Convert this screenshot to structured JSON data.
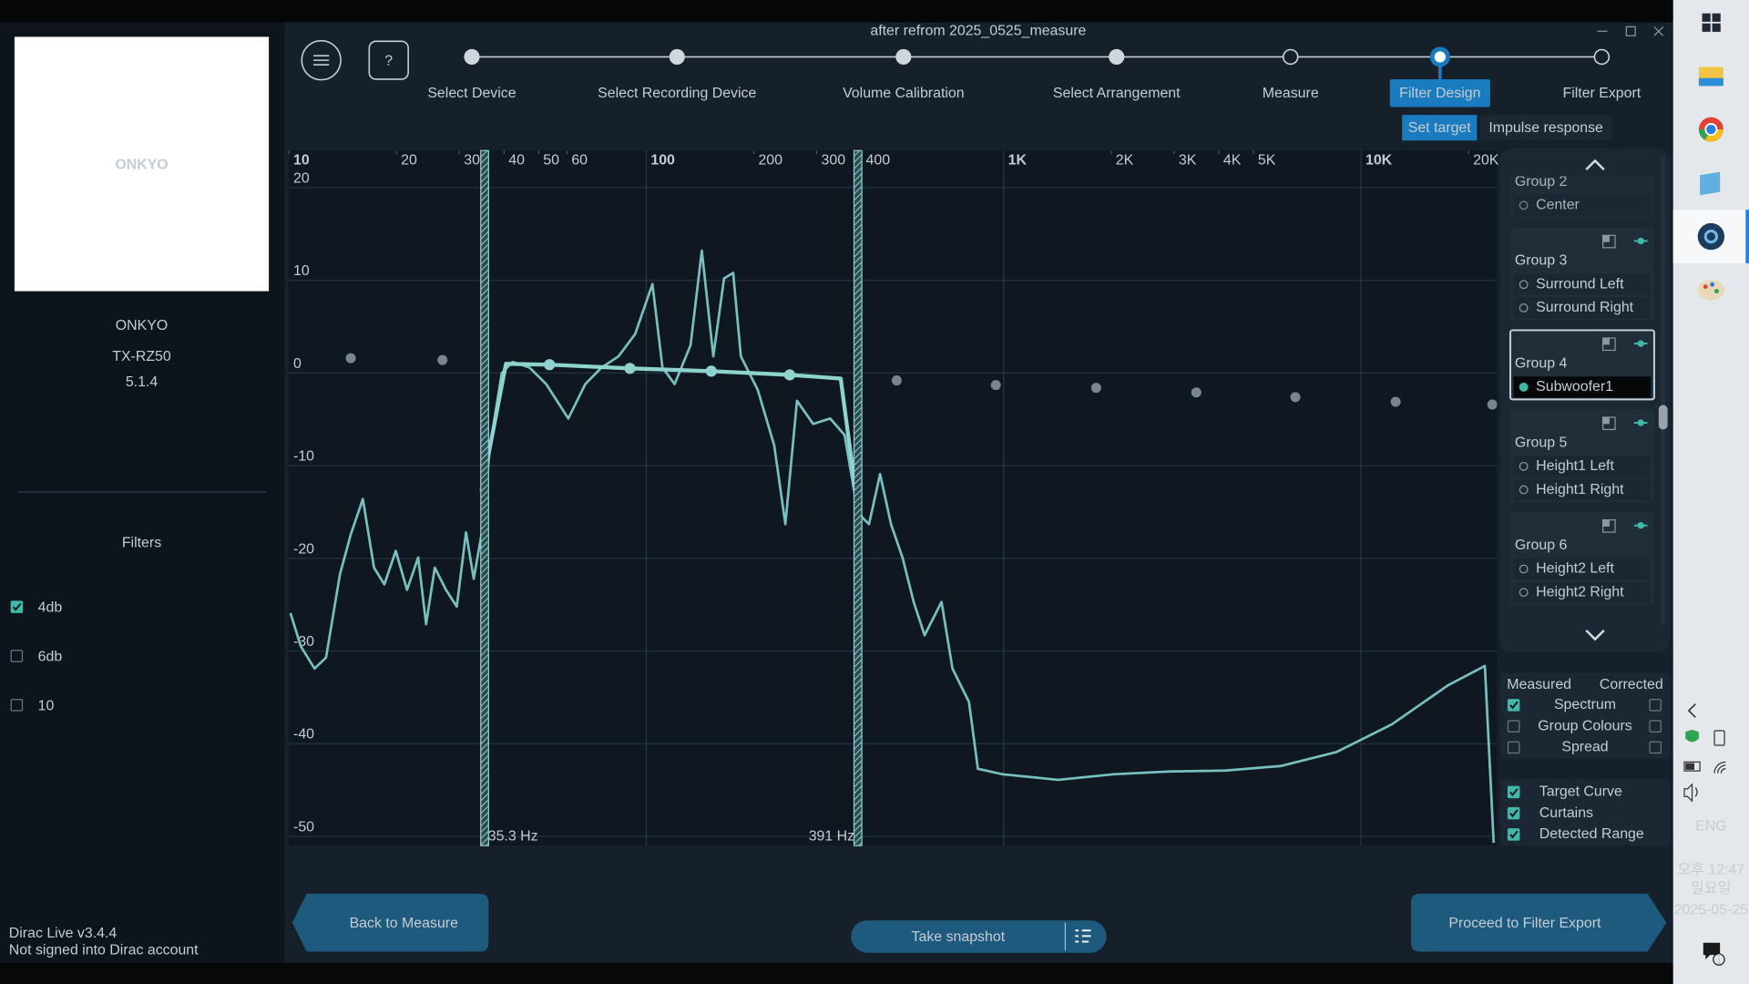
{
  "window": {
    "title": "after refrom 2025_0525_measure"
  },
  "sidebar": {
    "logo": "ONKYO",
    "brand": "ONKYO",
    "model": "TX-RZ50",
    "configuration": "5.1.4",
    "filters_title": "Filters",
    "filters": [
      {
        "label": "4db",
        "checked": true
      },
      {
        "label": "6db",
        "checked": false
      },
      {
        "label": "10",
        "checked": false
      }
    ],
    "version": "Dirac Live v3.4.4",
    "account": "Not signed into Dirac account"
  },
  "toolbar": {
    "help": "?"
  },
  "steps": [
    {
      "label": "Select Device",
      "state": "done"
    },
    {
      "label": "Select Recording Device",
      "state": "done"
    },
    {
      "label": "Volume Calibration",
      "state": "done"
    },
    {
      "label": "Select Arrangement",
      "state": "done"
    },
    {
      "label": "Measure",
      "state": "todo"
    },
    {
      "label": "Filter Design",
      "state": "current"
    },
    {
      "label": "Filter Export",
      "state": "todo"
    }
  ],
  "subtabs": [
    {
      "label": "Set target",
      "active": true
    },
    {
      "label": "Impulse response",
      "active": false
    }
  ],
  "chart_data": {
    "type": "line",
    "xscale": "log",
    "xlim": [
      10,
      24000
    ],
    "ylim": [
      -51,
      24
    ],
    "xticks": [
      10,
      20,
      30,
      40,
      50,
      60,
      100,
      200,
      300,
      400,
      {
        "value": 1000,
        "label": "1K"
      },
      {
        "value": 2000,
        "label": "2K"
      },
      {
        "value": 3000,
        "label": "3K"
      },
      {
        "value": 4000,
        "label": "4K"
      },
      {
        "value": 5000,
        "label": "5K"
      },
      {
        "value": 10000,
        "label": "10K"
      },
      {
        "value": 20000,
        "label": "20K"
      }
    ],
    "yticks": [
      20,
      10,
      0,
      -10,
      -20,
      -30,
      -40,
      -50
    ],
    "grid": true,
    "curtains": [
      {
        "value": 35.3,
        "label": "35.3 Hz"
      },
      {
        "value": 391,
        "label": "391 Hz"
      }
    ],
    "series": [
      {
        "type": "line",
        "color": "#78bfc0",
        "x": [
          10.1,
          10.8,
          11.8,
          12.7,
          13.9,
          14.9,
          16.1,
          17.3,
          18.5,
          19.9,
          21.4,
          23.0,
          24.2,
          25.6,
          27.5,
          29.5,
          31.3,
          32.9,
          34.6,
          36.6,
          39.4,
          42.3,
          47.1,
          52.5,
          60.5,
          67.5,
          75.0,
          83.6,
          93.1,
          104,
          111,
          120,
          133,
          143,
          154,
          165,
          175,
          184,
          205,
          228,
          245,
          264,
          293,
          327,
          359,
          391,
          420,
          451,
          484,
          521,
          560,
          601,
          670,
          719,
          800,
          847,
          993,
          1420,
          2030,
          2910,
          4170,
          5970,
          8530,
          12200,
          17500,
          22200,
          23500
        ],
        "values": [
          -25.9,
          -29.5,
          -31.9,
          -30.7,
          -21.7,
          -17.4,
          -13.6,
          -21.0,
          -22.8,
          -19.2,
          -23.4,
          -19.9,
          -27.1,
          -21.0,
          -23.4,
          -25.2,
          -17.2,
          -22.2,
          -17.4,
          -7.8,
          0.0,
          1.2,
          0.6,
          -1.2,
          -4.9,
          -1.2,
          0.6,
          1.8,
          4.2,
          9.6,
          0.6,
          -1.2,
          3.0,
          13.2,
          1.8,
          10.2,
          10.8,
          1.8,
          -1.8,
          -7.8,
          -16.3,
          -3.0,
          -5.5,
          -4.9,
          -6.7,
          -15.1,
          -16.3,
          -10.9,
          -16.3,
          -19.9,
          -24.7,
          -28.3,
          -24.7,
          -31.9,
          -35.5,
          -42.7,
          -43.3,
          -43.9,
          -43.3,
          -43.0,
          -42.9,
          -42.4,
          -40.9,
          -37.9,
          -33.7,
          -31.6,
          -50.7
        ]
      },
      {
        "type": "line",
        "color": "#8fd3cf",
        "x": [
          34.6,
          40.5,
          53.6,
          90,
          152,
          252,
          350,
          391
        ],
        "values": [
          -12.7,
          1.0,
          0.9,
          0.5,
          0.2,
          -0.2,
          -0.6,
          -14.6
        ]
      },
      {
        "type": "scatter",
        "color": "#8fd3cf",
        "outside_color": "#7b858d",
        "x": [
          14.9,
          26.9,
          53.6,
          90,
          152,
          252,
          502,
          951,
          1815,
          3460,
          6550,
          12500,
          23300
        ],
        "values": [
          1.6,
          1.4,
          0.9,
          0.5,
          0.2,
          -0.2,
          -0.8,
          -1.3,
          -1.6,
          -2.1,
          -2.6,
          -3.1,
          -3.4
        ]
      }
    ]
  },
  "groups": [
    {
      "label": "Group 2",
      "channels": [
        "Center"
      ],
      "selected": false
    },
    {
      "label": "Group 3",
      "channels": [
        "Surround Left",
        "Surround Right"
      ],
      "selected": false
    },
    {
      "label": "Group 4",
      "channels": [
        "Subwoofer1"
      ],
      "selected": true
    },
    {
      "label": "Group 5",
      "channels": [
        "Height1 Left",
        "Height1 Right"
      ],
      "selected": false
    },
    {
      "label": "Group 6",
      "channels": [
        "Height2 Left",
        "Height2 Right"
      ],
      "selected": false
    }
  ],
  "display_options": {
    "headers": [
      "Measured",
      "Corrected"
    ],
    "rows": [
      {
        "label": "Spectrum",
        "measured": true,
        "corrected": false
      },
      {
        "label": "Group Colours",
        "measured": false,
        "corrected": false
      },
      {
        "label": "Spread",
        "measured": false,
        "corrected": false
      }
    ],
    "overlays": [
      {
        "label": "Target Curve",
        "checked": true
      },
      {
        "label": "Curtains",
        "checked": true
      },
      {
        "label": "Detected Range",
        "checked": true
      }
    ]
  },
  "buttons": {
    "back": "Back to Measure",
    "snapshot": "Take snapshot",
    "proceed": "Proceed to Filter Export"
  },
  "taskbar": {
    "language": "ENG",
    "time": "오후 12:47",
    "day": "일요일",
    "date": "2025-05-25",
    "notifications": 1
  }
}
